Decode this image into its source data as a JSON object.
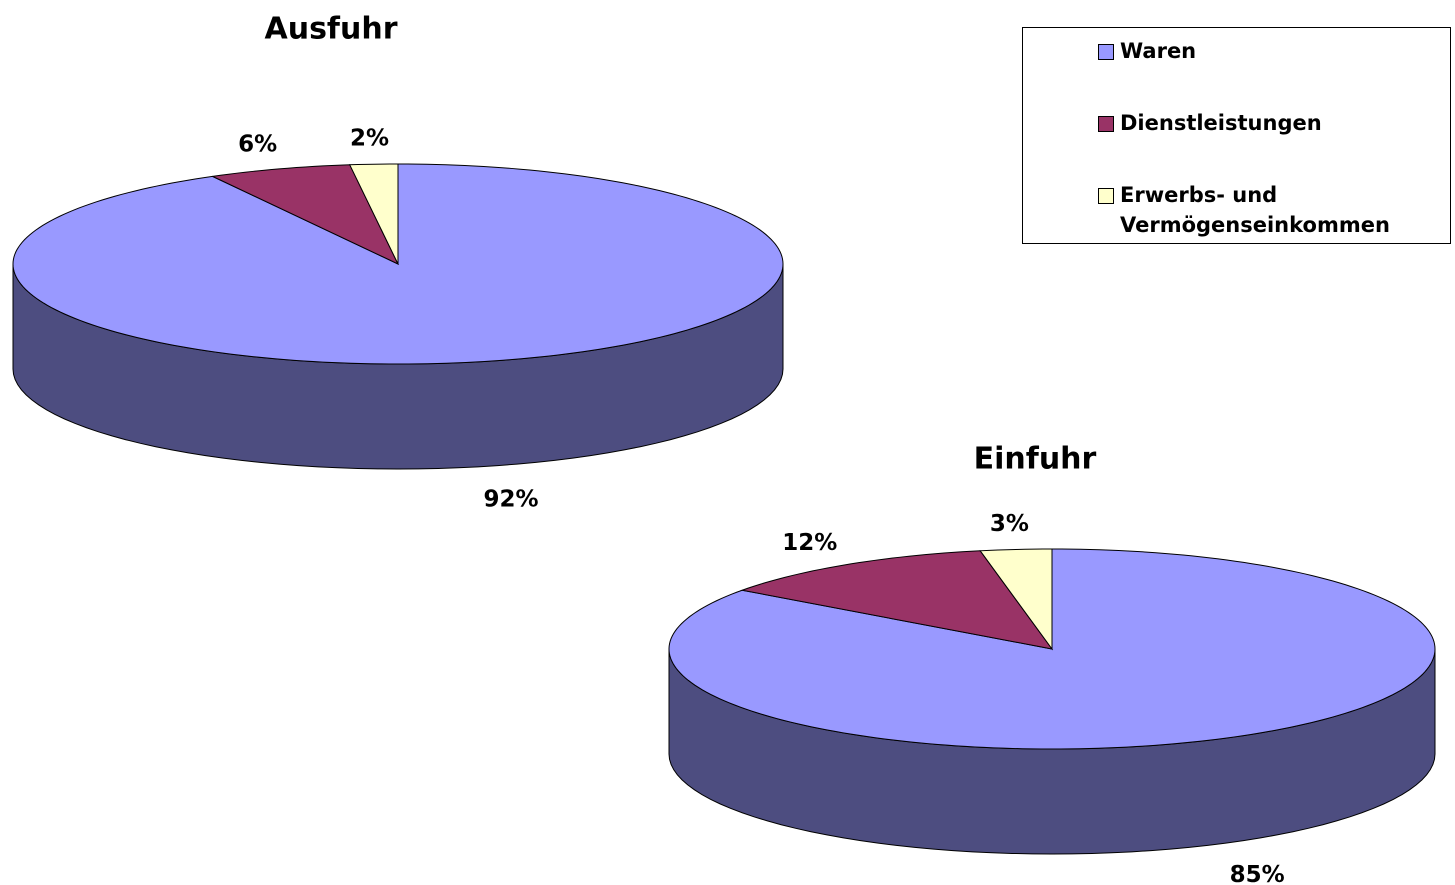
{
  "chart_data": [
    {
      "type": "pie",
      "title": "Ausfuhr",
      "categories": [
        "Waren",
        "Dienstleistungen",
        "Erwerbs- und Vermögenseinkommen"
      ],
      "values": [
        92,
        6,
        2
      ],
      "value_labels": [
        "92%",
        "6%",
        "2%"
      ],
      "colors": [
        "#9999ff",
        "#993366",
        "#ffffcc"
      ]
    },
    {
      "type": "pie",
      "title": "Einfuhr",
      "categories": [
        "Waren",
        "Dienstleistungen",
        "Erwerbs- und Vermögenseinkommen"
      ],
      "values": [
        85,
        12,
        3
      ],
      "value_labels": [
        "85%",
        "12%",
        "3%"
      ],
      "colors": [
        "#9999ff",
        "#993366",
        "#ffffcc"
      ]
    }
  ]
}
